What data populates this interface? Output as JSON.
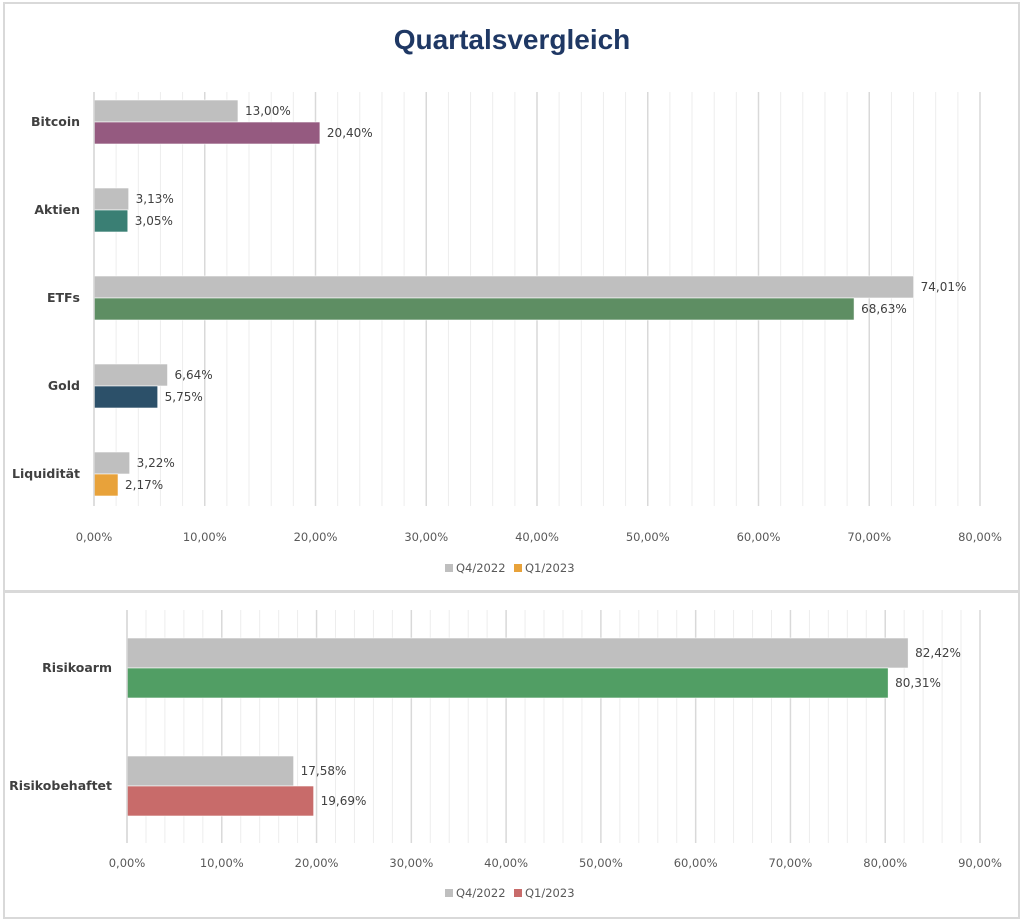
{
  "chart_data": [
    {
      "type": "bar",
      "orientation": "horizontal",
      "title": "Quartalsvergleich",
      "xlabel": "",
      "ylabel": "",
      "categories": [
        "Bitcoin",
        "Aktien",
        "ETFs",
        "Gold",
        "Liquidität"
      ],
      "series": [
        {
          "name": "Q4/2022",
          "values": [
            13.0,
            3.13,
            74.01,
            6.64,
            3.22
          ],
          "labels": [
            "13,00%",
            "3,13%",
            "74,01%",
            "6,64%",
            "3,22%"
          ],
          "color": "#bfbfbf"
        },
        {
          "name": "Q1/2023",
          "values": [
            20.4,
            3.05,
            68.63,
            5.75,
            2.17
          ],
          "labels": [
            "20,40%",
            "3,05%",
            "68,63%",
            "5,75%",
            "2,17%"
          ],
          "colors": [
            "#955a80",
            "#3a7f74",
            "#5e8e63",
            "#2c5069",
            "#e8a23a"
          ],
          "legend_color": "#e8a23a"
        }
      ],
      "xlim": [
        0,
        80
      ],
      "xticks": [
        0,
        10,
        20,
        30,
        40,
        50,
        60,
        70,
        80
      ],
      "xtick_labels": [
        "0,00%",
        "10,00%",
        "20,00%",
        "30,00%",
        "40,00%",
        "50,00%",
        "60,00%",
        "70,00%",
        "80,00%"
      ],
      "minor_grid_step": 2,
      "grid": true,
      "legend_position": "bottom"
    },
    {
      "type": "bar",
      "orientation": "horizontal",
      "title": "",
      "xlabel": "",
      "ylabel": "",
      "categories": [
        "Risikoarm",
        "Risikobehaftet"
      ],
      "series": [
        {
          "name": "Q4/2022",
          "values": [
            82.42,
            17.58
          ],
          "labels": [
            "82,42%",
            "17,58%"
          ],
          "color": "#bfbfbf"
        },
        {
          "name": "Q1/2023",
          "values": [
            80.31,
            19.69
          ],
          "labels": [
            "80,31%",
            "19,69%"
          ],
          "colors": [
            "#519e64",
            "#c86b6a"
          ],
          "legend_color": "#c86b6a"
        }
      ],
      "xlim": [
        0,
        90
      ],
      "xticks": [
        0,
        10,
        20,
        30,
        40,
        50,
        60,
        70,
        80,
        90
      ],
      "xtick_labels": [
        "0,00%",
        "10,00%",
        "20,00%",
        "30,00%",
        "40,00%",
        "50,00%",
        "60,00%",
        "70,00%",
        "80,00%",
        "90,00%"
      ],
      "minor_grid_step": 2,
      "grid": true,
      "legend_position": "bottom"
    }
  ]
}
